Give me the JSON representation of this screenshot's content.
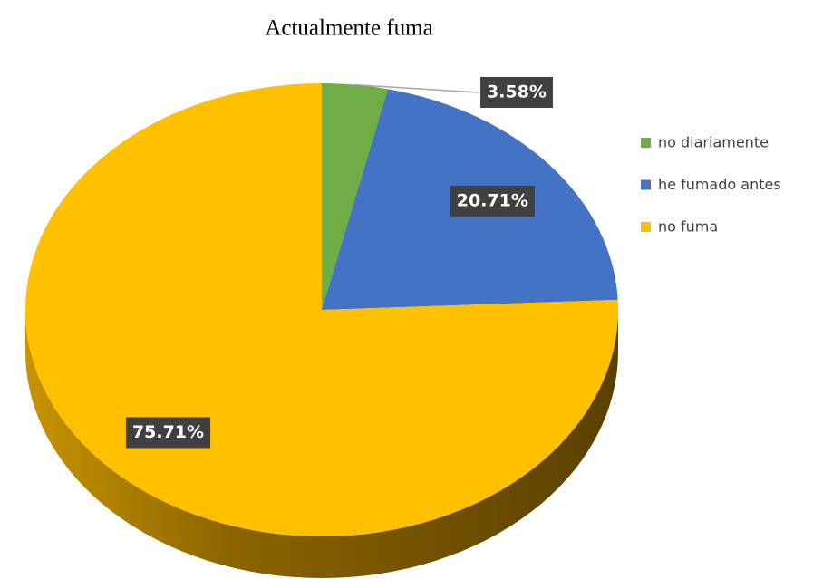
{
  "chart_data": {
    "type": "pie",
    "title": "Actualmente fuma",
    "categories": [
      "no diariamente",
      "he fumado antes",
      "no fuma"
    ],
    "values": [
      3.58,
      20.71,
      75.71
    ],
    "value_labels": [
      "3.58%",
      "20.71%",
      "75.71%"
    ],
    "colors": [
      "#70ad47",
      "#4472c4",
      "#ffc000"
    ],
    "legend": "right"
  }
}
